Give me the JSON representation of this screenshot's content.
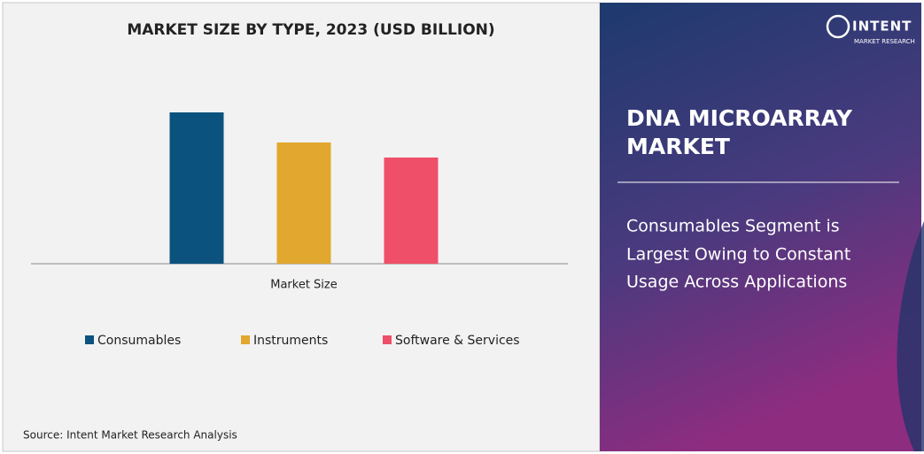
{
  "chart_data": {
    "type": "bar",
    "title": "MARKET SIZE BY TYPE, 2023 (USD BILLION)",
    "categories": [
      "Market Size"
    ],
    "series": [
      {
        "name": "Consumables",
        "color": "#0b527e",
        "values": [
          1.71
        ]
      },
      {
        "name": "Instruments",
        "color": "#e2a72e",
        "values": [
          1.37
        ]
      },
      {
        "name": "Software & Services",
        "color": "#ef4f68",
        "values": [
          1.2
        ]
      }
    ],
    "ylim": [
      0,
      2
    ],
    "legend": "bottom"
  },
  "source": "Source: Intent Market Research Analysis",
  "panel": {
    "heading": [
      "DNA MICROARRAY",
      "MARKET"
    ],
    "subheading": [
      "Consumables Segment is",
      "Largest Owing to Constant",
      "Usage Across Applications"
    ]
  },
  "logo": {
    "name": "INTENT",
    "tagline": "MARKET RESEARCH"
  }
}
